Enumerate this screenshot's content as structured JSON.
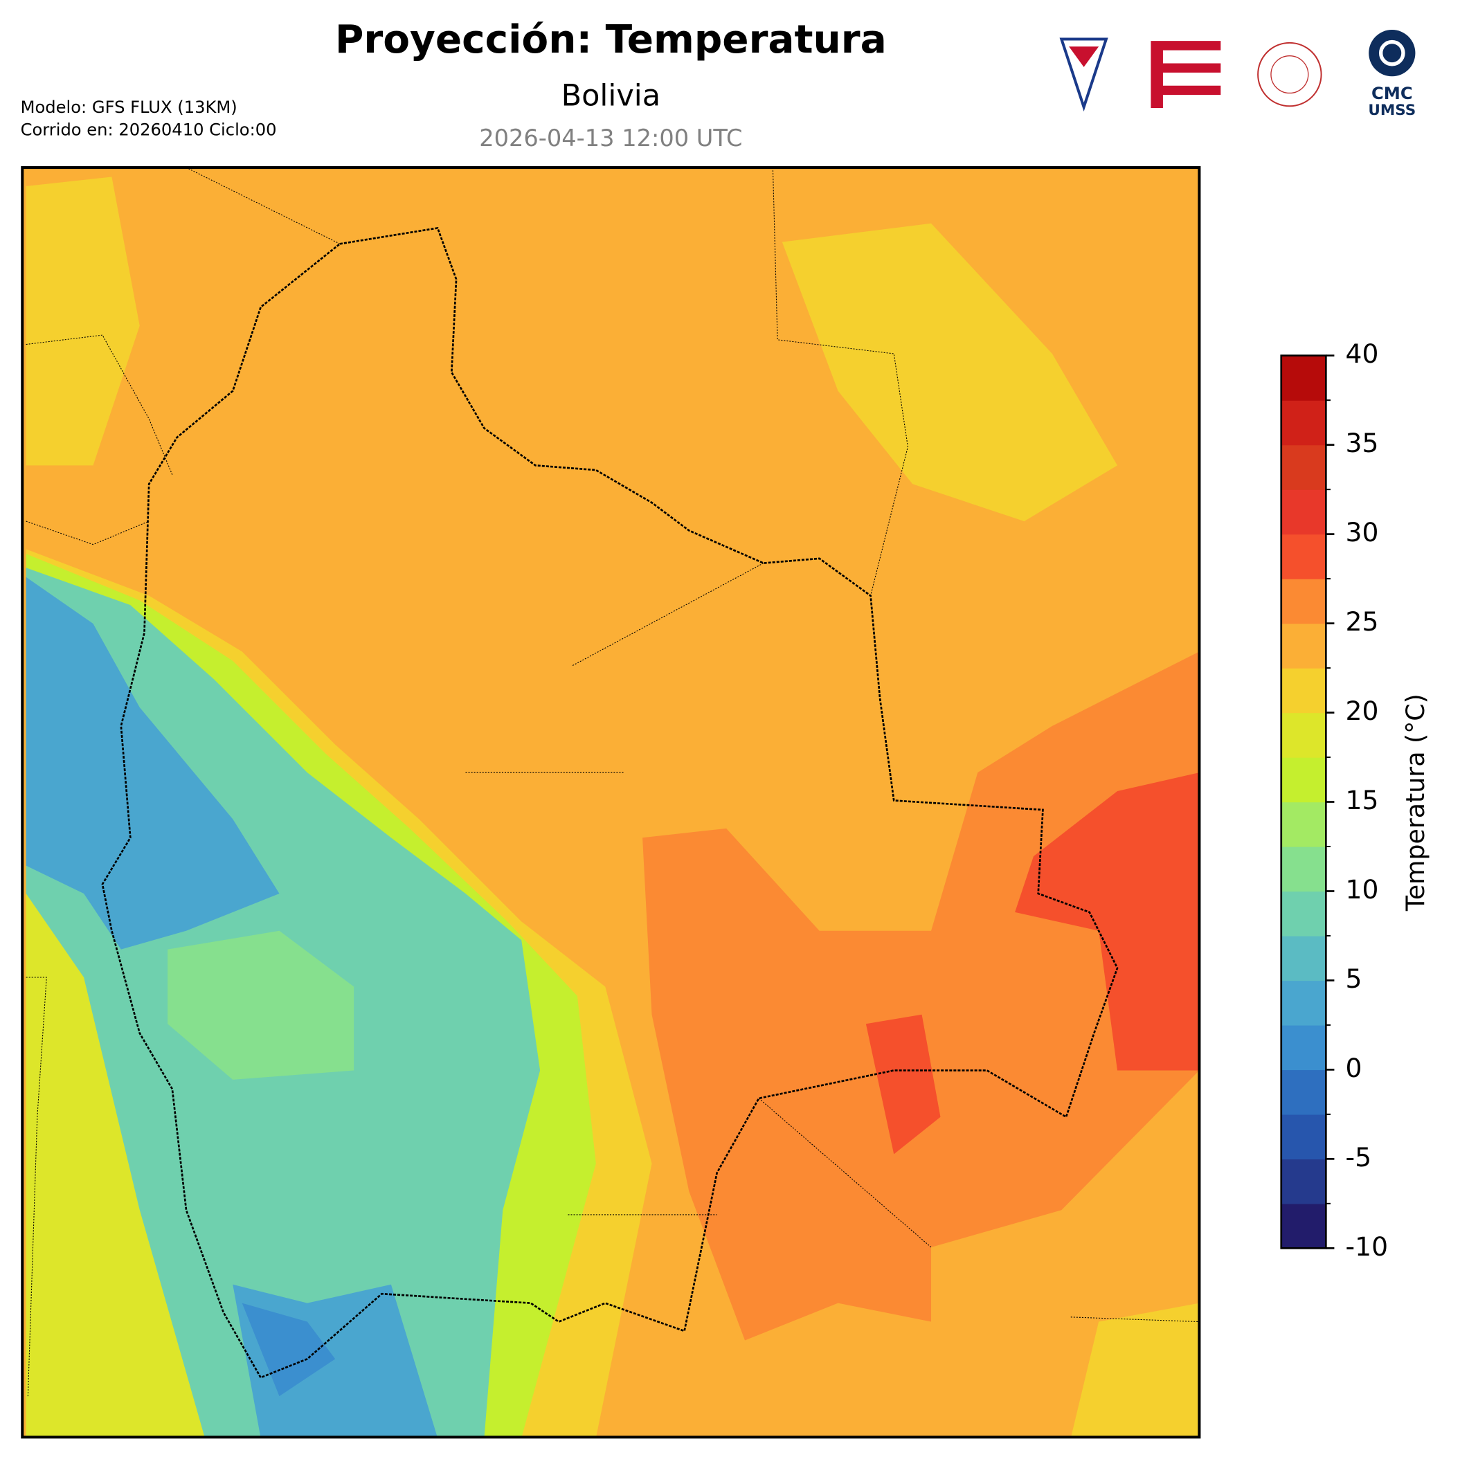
{
  "header": {
    "title": "Proyección: Temperatura",
    "subtitle": "Bolivia",
    "valid_time": "2026-04-13 12:00 UTC",
    "model": "Modelo: GFS FLUX (13KM)",
    "run": "Corrido en: 20260410 Ciclo:00"
  },
  "logos": {
    "cmc_line1": "CMC",
    "cmc_line2": "UMSS"
  },
  "colorbar": {
    "label": "Temperatura (°C)",
    "lim": [
      -10,
      40
    ],
    "ticks": [
      -10,
      -5,
      0,
      5,
      10,
      15,
      20,
      25,
      30,
      35,
      40
    ],
    "levels": [
      -10,
      -7.5,
      -5,
      -2.5,
      0,
      2.5,
      5,
      7.5,
      10,
      12.5,
      15,
      17.5,
      20,
      22.5,
      25,
      27.5,
      30,
      32.5,
      35,
      37.5,
      40
    ],
    "colors": [
      "#221c6b",
      "#253a8d",
      "#2756ad",
      "#2e6fbf",
      "#3b8fcf",
      "#4aa6cf",
      "#5bbbc3",
      "#6fd0ae",
      "#86e08e",
      "#a3ea63",
      "#c5ef2e",
      "#dde62a",
      "#f5d02e",
      "#fbaf36",
      "#fb8a33",
      "#f5502c",
      "#e8382a",
      "#d93a1e",
      "#d02118",
      "#b60b0a"
    ]
  }
}
